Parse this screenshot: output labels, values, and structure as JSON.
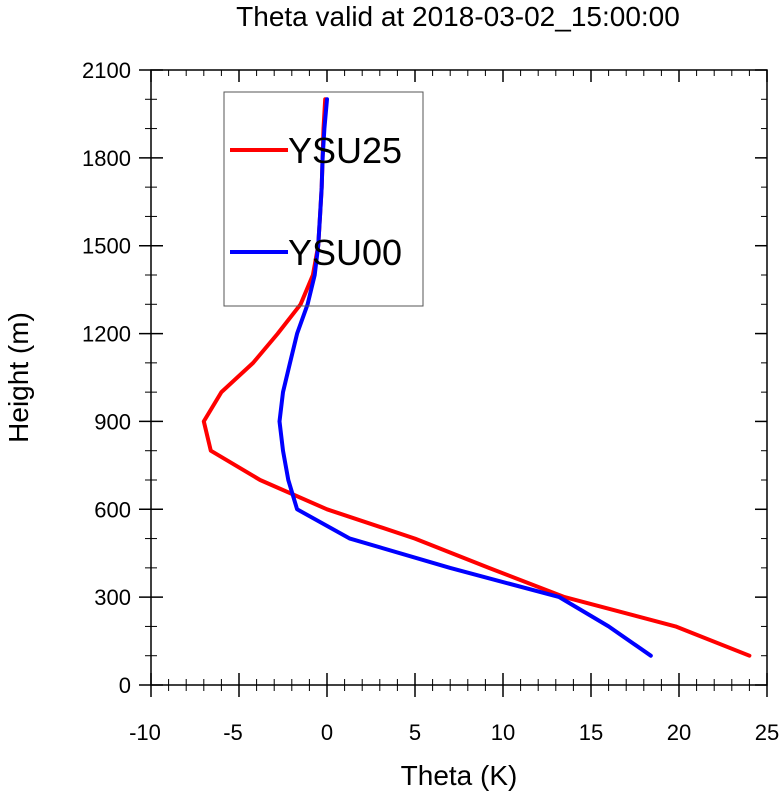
{
  "chart_data": {
    "type": "line",
    "title": "Theta valid at 2018-03-02_15:00:00",
    "xlabel": "Theta (K)",
    "ylabel": "Height (m)",
    "xlim": [
      -10,
      25
    ],
    "ylim": [
      0,
      2100
    ],
    "xticks": [
      -10,
      -5,
      0,
      5,
      10,
      15,
      20,
      25
    ],
    "yticks": [
      0,
      300,
      600,
      900,
      1200,
      1500,
      1800,
      2100
    ],
    "legend_position": "upper-left",
    "grid": false,
    "series": [
      {
        "name": "YSU25",
        "color": "#ff0000",
        "points": [
          [
            24.0,
            100
          ],
          [
            19.8,
            200
          ],
          [
            13.5,
            300
          ],
          [
            9.2,
            400
          ],
          [
            5.0,
            500
          ],
          [
            0.0,
            600
          ],
          [
            -3.8,
            700
          ],
          [
            -6.6,
            800
          ],
          [
            -7.0,
            900
          ],
          [
            -6.0,
            1000
          ],
          [
            -4.2,
            1100
          ],
          [
            -2.8,
            1200
          ],
          [
            -1.5,
            1300
          ],
          [
            -0.8,
            1400
          ],
          [
            -0.5,
            1500
          ],
          [
            -0.4,
            1600
          ],
          [
            -0.3,
            1700
          ],
          [
            -0.25,
            1800
          ],
          [
            -0.2,
            1900
          ],
          [
            -0.1,
            2000
          ]
        ]
      },
      {
        "name": "YSU00",
        "color": "#0000ff",
        "points": [
          [
            18.4,
            100
          ],
          [
            16.0,
            200
          ],
          [
            13.2,
            300
          ],
          [
            7.0,
            400
          ],
          [
            1.3,
            500
          ],
          [
            -1.7,
            600
          ],
          [
            -2.2,
            700
          ],
          [
            -2.5,
            800
          ],
          [
            -2.7,
            900
          ],
          [
            -2.5,
            1000
          ],
          [
            -2.1,
            1100
          ],
          [
            -1.7,
            1200
          ],
          [
            -1.1,
            1300
          ],
          [
            -0.7,
            1400
          ],
          [
            -0.5,
            1500
          ],
          [
            -0.4,
            1600
          ],
          [
            -0.3,
            1700
          ],
          [
            -0.25,
            1800
          ],
          [
            -0.15,
            1900
          ],
          [
            0.0,
            2000
          ]
        ]
      }
    ]
  }
}
